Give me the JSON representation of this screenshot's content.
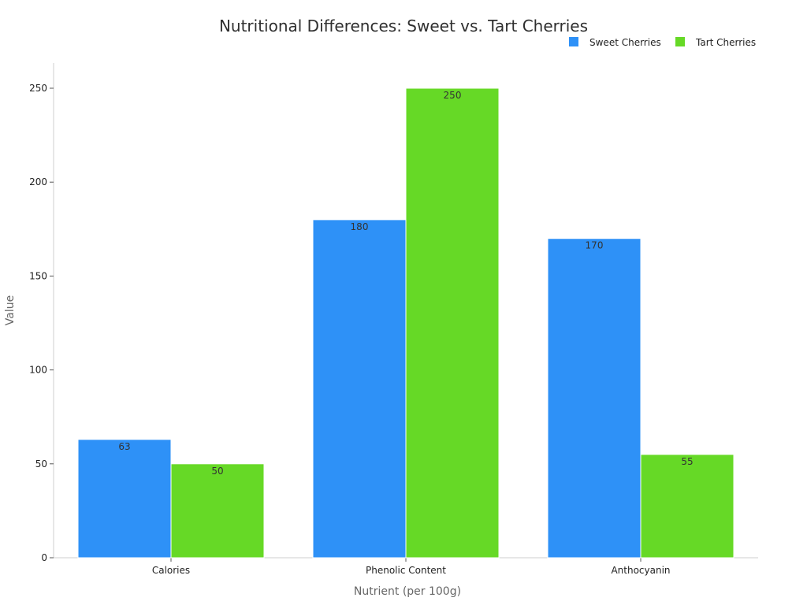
{
  "chart_data": {
    "type": "bar",
    "title": "Nutritional Differences: Sweet vs. Tart Cherries",
    "xlabel": "Nutrient (per 100g)",
    "ylabel": "Value",
    "categories": [
      "Calories",
      "Phenolic Content",
      "Anthocyanin"
    ],
    "series": [
      {
        "name": "Sweet Cherries",
        "color": "#2e91f7",
        "values": [
          63,
          180,
          170
        ]
      },
      {
        "name": "Tart Cherries",
        "color": "#66d926",
        "values": [
          50,
          250,
          55
        ]
      }
    ],
    "ylim": [
      0,
      250
    ],
    "yticks": [
      0,
      50,
      100,
      150,
      200,
      250
    ],
    "grid": false,
    "legend_position": "top-right",
    "data_labels": true
  }
}
